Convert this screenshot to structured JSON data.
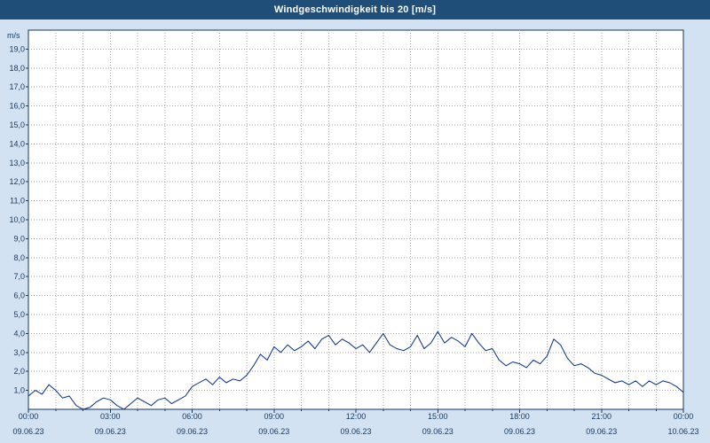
{
  "title_bar": {
    "title": "Windgeschwindigkeit bis 20 [m/s]"
  },
  "colors": {
    "page_bg": "#d3e2f2",
    "titlebar_bg": "#1f4e79",
    "titlebar_text": "#ffffff",
    "plot_bg": "#ffffff",
    "plot_border": "#16365c",
    "grid": "#a3a3a3",
    "line": "#002d8c",
    "axis_text": "#16365c"
  },
  "chart_data": {
    "type": "line",
    "title": "Windgeschwindigkeit bis 20 [m/s]",
    "unit_label": "m/s",
    "ylim": [
      0,
      20
    ],
    "ytick_step": 1,
    "decimal_separator": ",",
    "ytick_labels": [
      "1,0",
      "2,0",
      "3,0",
      "4,0",
      "5,0",
      "6,0",
      "7,0",
      "8,0",
      "9,0",
      "10,0",
      "11,0",
      "12,0",
      "13,0",
      "14,0",
      "15,0",
      "16,0",
      "17,0",
      "18,0",
      "19,0"
    ],
    "x_hours_range": [
      0,
      24
    ],
    "grid": "dotted",
    "legend": "none",
    "x_ticks": [
      {
        "hour": 0,
        "time": "00:00",
        "date": "09.06.23"
      },
      {
        "hour": 3,
        "time": "03:00",
        "date": "09.06.23"
      },
      {
        "hour": 6,
        "time": "06:00",
        "date": "09.06.23"
      },
      {
        "hour": 9,
        "time": "09:00",
        "date": "09.06.23"
      },
      {
        "hour": 12,
        "time": "12:00",
        "date": "09.06.23"
      },
      {
        "hour": 15,
        "time": "15:00",
        "date": "09.06.23"
      },
      {
        "hour": 18,
        "time": "18:00",
        "date": "09.06.23"
      },
      {
        "hour": 21,
        "time": "21:00",
        "date": "09.06.23"
      },
      {
        "hour": 24,
        "time": "00:00",
        "date": "10.06.23"
      }
    ],
    "series": [
      {
        "name": "Windgeschwindigkeit",
        "x_start_hour": 0,
        "x_step_hours": 0.25,
        "values": [
          0.7,
          1.0,
          0.8,
          1.3,
          1.0,
          0.6,
          0.7,
          0.2,
          0.0,
          0.1,
          0.4,
          0.6,
          0.5,
          0.2,
          0.0,
          0.3,
          0.6,
          0.4,
          0.2,
          0.5,
          0.6,
          0.3,
          0.5,
          0.7,
          1.2,
          1.4,
          1.6,
          1.3,
          1.7,
          1.4,
          1.6,
          1.5,
          1.8,
          2.3,
          2.9,
          2.6,
          3.3,
          3.0,
          3.4,
          3.1,
          3.3,
          3.6,
          3.2,
          3.7,
          3.9,
          3.4,
          3.7,
          3.5,
          3.2,
          3.4,
          3.0,
          3.5,
          4.0,
          3.4,
          3.2,
          3.1,
          3.3,
          3.9,
          3.2,
          3.5,
          4.1,
          3.5,
          3.8,
          3.6,
          3.3,
          4.0,
          3.5,
          3.1,
          3.2,
          2.6,
          2.3,
          2.5,
          2.4,
          2.2,
          2.6,
          2.4,
          2.8,
          3.7,
          3.4,
          2.7,
          2.3,
          2.4,
          2.2,
          1.9,
          1.8,
          1.6,
          1.4,
          1.5,
          1.3,
          1.5,
          1.2,
          1.5,
          1.3,
          1.5,
          1.4,
          1.2,
          0.9
        ]
      }
    ]
  }
}
